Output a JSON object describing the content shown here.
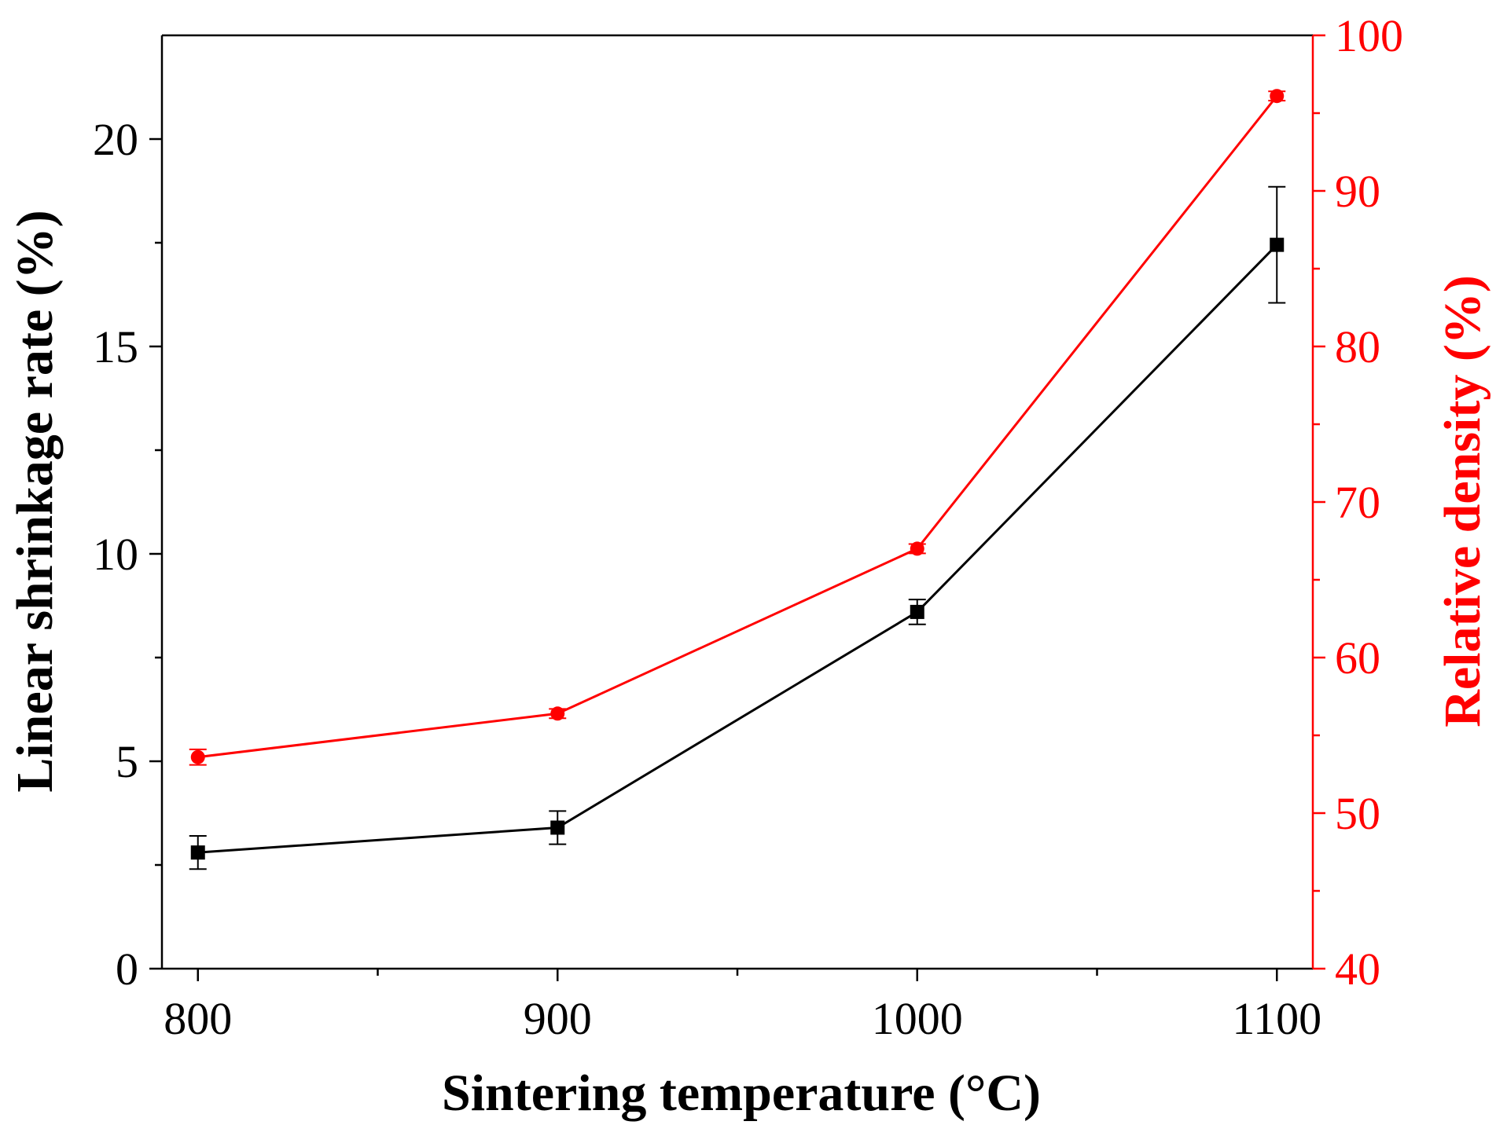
{
  "chart_data": {
    "type": "line",
    "title": "",
    "xlabel": "Sintering temperature (°C)",
    "ylabel": "Linear shrinkage rate (%)",
    "y2label": "Relative density (%)",
    "x": [
      800,
      900,
      1000,
      1100
    ],
    "xlim": [
      790,
      1110
    ],
    "ylim": [
      0,
      22.5
    ],
    "y2lim": [
      40,
      100
    ],
    "xticks": [
      800,
      900,
      1000,
      1100
    ],
    "xtick_labels": [
      "800",
      "900",
      "1000",
      "1100"
    ],
    "xminor": [
      850,
      950,
      1050
    ],
    "yticks": [
      0,
      5,
      10,
      15,
      20
    ],
    "ytick_labels": [
      "0",
      "5",
      "10",
      "15",
      "20"
    ],
    "yminor": [
      2.5,
      7.5,
      12.5,
      17.5
    ],
    "y2ticks": [
      40,
      50,
      60,
      70,
      80,
      90,
      100
    ],
    "y2tick_labels": [
      "40",
      "50",
      "60",
      "70",
      "80",
      "90",
      "100"
    ],
    "y2minor": [
      45,
      55,
      65,
      75,
      85,
      95
    ],
    "grid": false,
    "legend": "none",
    "series": [
      {
        "name": "Linear shrinkage rate",
        "axis": "left",
        "marker": "square",
        "color": "#000000",
        "values": [
          2.8,
          3.4,
          8.6,
          17.45
        ],
        "errors": [
          0.4,
          0.4,
          0.3,
          1.4
        ]
      },
      {
        "name": "Relative density",
        "axis": "right",
        "marker": "circle",
        "color": "#ff0000",
        "values": [
          53.6,
          56.4,
          67.0,
          96.1
        ],
        "errors": [
          0.5,
          0.3,
          0.3,
          0.3
        ]
      }
    ]
  }
}
